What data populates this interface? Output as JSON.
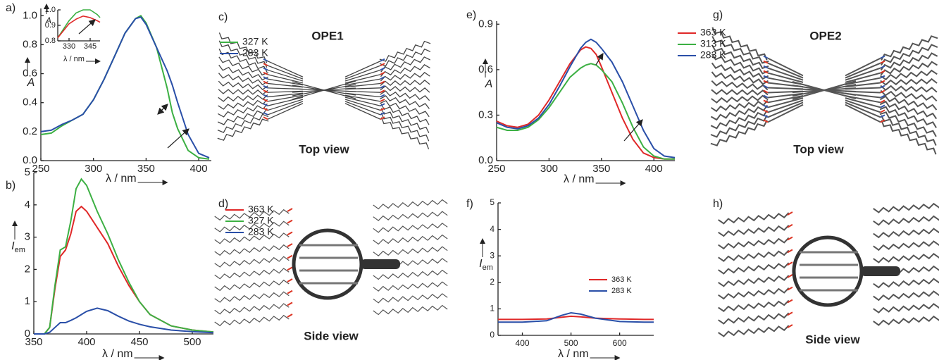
{
  "chart_data": [
    {
      "type": "line",
      "panel_label": "a)",
      "y_label": "A",
      "x_label": "λ / nm",
      "x": [
        250,
        260,
        270,
        280,
        290,
        300,
        310,
        320,
        330,
        340,
        345,
        350,
        360,
        370,
        375,
        380,
        390,
        400,
        410
      ],
      "series": [
        {
          "name": "327 K",
          "color": "#3cb043",
          "values": [
            0.18,
            0.19,
            0.24,
            0.28,
            0.32,
            0.42,
            0.56,
            0.72,
            0.88,
            0.98,
            1.0,
            0.95,
            0.78,
            0.5,
            0.33,
            0.22,
            0.07,
            0.02,
            0.01
          ]
        },
        {
          "name": "283 K",
          "color": "#2a4fa8",
          "values": [
            0.2,
            0.21,
            0.25,
            0.28,
            0.32,
            0.42,
            0.56,
            0.72,
            0.88,
            0.98,
            0.99,
            0.94,
            0.78,
            0.62,
            0.52,
            0.4,
            0.18,
            0.05,
            0.02
          ]
        }
      ],
      "xlim": [
        250,
        412
      ],
      "ylim": [
        0,
        1.05
      ],
      "xticks": [
        250,
        300,
        350,
        400
      ],
      "yticks": [
        {
          "value": 0,
          "label": "0.0"
        },
        0.2,
        0.4,
        0.6,
        0.8,
        {
          "value": 1,
          "label": "1.0"
        }
      ]
    },
    {
      "type": "line",
      "y_label": "A",
      "x_label": "λ / nm",
      "x": [
        322,
        330,
        335,
        340,
        345,
        350,
        352
      ],
      "series": [
        {
          "color": "#3cb043",
          "values": [
            0.82,
            0.93,
            0.98,
            1.0,
            1.0,
            0.97,
            0.95
          ]
        },
        {
          "color": "#e02828",
          "values": [
            0.82,
            0.91,
            0.94,
            0.96,
            0.95,
            0.93,
            0.92
          ]
        }
      ],
      "xlim": [
        322,
        352
      ],
      "ylim": [
        0.8,
        1.0
      ],
      "xticks": [
        330,
        345
      ],
      "yticks": [
        0.8,
        0.9,
        {
          "value": 1,
          "label": "1.0"
        }
      ]
    },
    {
      "type": "line",
      "panel_label": "b)",
      "y_label": "I",
      "y_label_subscript": "em",
      "x_label": "λ / nm",
      "x": [
        350,
        360,
        365,
        370,
        375,
        380,
        385,
        390,
        395,
        400,
        410,
        420,
        430,
        440,
        450,
        460,
        480,
        500,
        520
      ],
      "series": [
        {
          "name": "363 K",
          "color": "#e02828",
          "values": [
            0,
            0,
            0.2,
            1.4,
            2.4,
            2.6,
            3.1,
            3.8,
            3.95,
            3.8,
            3.3,
            2.8,
            2.1,
            1.5,
            1.0,
            0.6,
            0.25,
            0.12,
            0.06
          ]
        },
        {
          "name": "327 K",
          "color": "#3cb043",
          "values": [
            0,
            0,
            0.2,
            1.5,
            2.6,
            2.7,
            3.5,
            4.5,
            4.8,
            4.6,
            3.8,
            3.1,
            2.3,
            1.6,
            1.0,
            0.6,
            0.25,
            0.12,
            0.06
          ]
        },
        {
          "name": "283 K",
          "color": "#2a4fa8",
          "values": [
            0,
            0,
            0.05,
            0.2,
            0.35,
            0.35,
            0.42,
            0.5,
            0.6,
            0.7,
            0.8,
            0.72,
            0.55,
            0.4,
            0.3,
            0.22,
            0.12,
            0.07,
            0.04
          ]
        }
      ],
      "xlim": [
        350,
        520
      ],
      "ylim": [
        0,
        5
      ],
      "xticks": [
        350,
        400,
        450,
        500
      ],
      "yticks": [
        0,
        1,
        2,
        3,
        4,
        5
      ]
    },
    {
      "type": "line",
      "panel_label": "e)",
      "y_label": "A",
      "x_label": "λ / nm",
      "x": [
        250,
        260,
        270,
        280,
        290,
        300,
        310,
        320,
        330,
        335,
        340,
        345,
        350,
        360,
        370,
        380,
        390,
        400,
        410,
        420
      ],
      "series": [
        {
          "name": "363 K",
          "color": "#e02828",
          "values": [
            0.26,
            0.23,
            0.22,
            0.24,
            0.3,
            0.4,
            0.52,
            0.64,
            0.73,
            0.75,
            0.74,
            0.7,
            0.62,
            0.45,
            0.28,
            0.14,
            0.05,
            0.02,
            0.01,
            0.01
          ]
        },
        {
          "name": "313 K",
          "color": "#3cb043",
          "values": [
            0.22,
            0.2,
            0.2,
            0.22,
            0.27,
            0.35,
            0.45,
            0.55,
            0.61,
            0.63,
            0.64,
            0.63,
            0.6,
            0.52,
            0.38,
            0.22,
            0.09,
            0.03,
            0.01,
            0.01
          ]
        },
        {
          "name": "283 K",
          "color": "#2a4fa8",
          "values": [
            0.25,
            0.22,
            0.21,
            0.23,
            0.28,
            0.37,
            0.49,
            0.62,
            0.74,
            0.78,
            0.8,
            0.78,
            0.74,
            0.65,
            0.52,
            0.36,
            0.2,
            0.08,
            0.03,
            0.02
          ]
        }
      ],
      "xlim": [
        250,
        420
      ],
      "ylim": [
        0,
        0.92
      ],
      "xticks": [
        250,
        300,
        350,
        400
      ],
      "yticks": [
        {
          "value": 0,
          "label": "0.0"
        },
        0.3,
        0.6,
        0.9
      ]
    },
    {
      "type": "line",
      "panel_label": "f)",
      "y_label": "I",
      "y_label_subscript": "em",
      "x_label": "λ / nm",
      "x": [
        350,
        400,
        450,
        480,
        500,
        520,
        550,
        600,
        650,
        670
      ],
      "series": [
        {
          "name": "363 K",
          "color": "#e02828",
          "values": [
            0.6,
            0.6,
            0.62,
            0.68,
            0.72,
            0.7,
            0.65,
            0.62,
            0.6,
            0.6
          ]
        },
        {
          "name": "283 K",
          "color": "#2a4fa8",
          "values": [
            0.5,
            0.5,
            0.55,
            0.75,
            0.85,
            0.8,
            0.65,
            0.52,
            0.5,
            0.5
          ]
        }
      ],
      "xlim": [
        350,
        670
      ],
      "ylim": [
        0,
        5
      ],
      "xticks": [
        400,
        500,
        600
      ],
      "yticks": [
        0,
        1,
        2,
        3,
        4,
        5
      ]
    }
  ],
  "panels": [
    {
      "label": "c)",
      "title": "OPE1",
      "caption": "Top view"
    },
    {
      "label": "d)",
      "caption": "Side view"
    },
    {
      "label": "g)",
      "title": "OPE2",
      "caption": "Top view"
    },
    {
      "label": "h)",
      "caption": "Side view"
    }
  ]
}
